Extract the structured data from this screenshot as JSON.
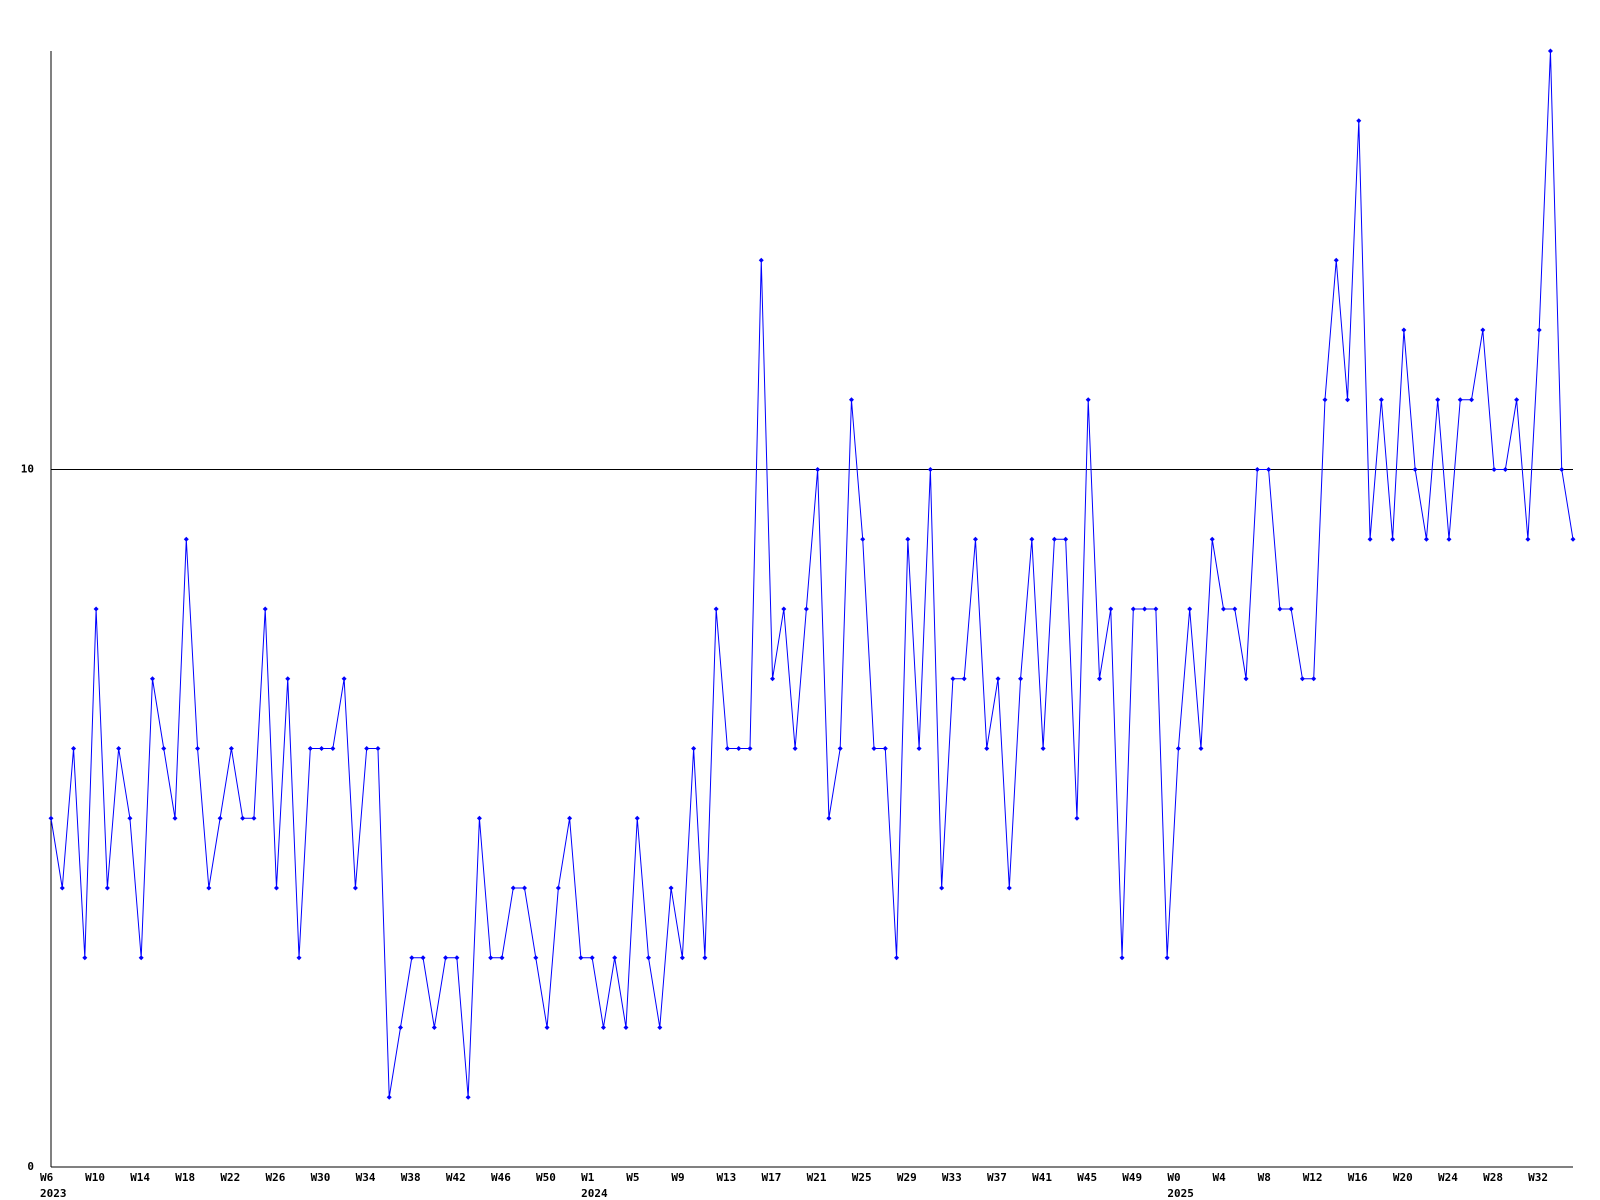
{
  "chart_data": {
    "type": "line",
    "color": "#0000ff",
    "categories": [
      "W6",
      null,
      null,
      null,
      "W10",
      null,
      null,
      null,
      "W14",
      null,
      null,
      null,
      "W18",
      null,
      null,
      null,
      "W22",
      null,
      null,
      null,
      "W26",
      null,
      null,
      null,
      "W30",
      null,
      null,
      null,
      "W34",
      null,
      null,
      null,
      "W38",
      null,
      null,
      null,
      "W42",
      null,
      null,
      null,
      "W46",
      null,
      null,
      null,
      "W50",
      null,
      null,
      null,
      "W1",
      null,
      null,
      null,
      "W5",
      null,
      null,
      null,
      "W9",
      null,
      null,
      null,
      "W13",
      null,
      null,
      null,
      "W17",
      null,
      null,
      null,
      "W21",
      null,
      null,
      null,
      "W25",
      null,
      null,
      null,
      "W29",
      null,
      null,
      null,
      "W33",
      null,
      null,
      null,
      "W37",
      null,
      null,
      null,
      "W41",
      null,
      null,
      null,
      "W45",
      null,
      null,
      null,
      "W49",
      null,
      null,
      null,
      "W0",
      null,
      null,
      null,
      "W4",
      null,
      null,
      null,
      "W8",
      null,
      null,
      null,
      "W12",
      null,
      null,
      null,
      "W16",
      null,
      null,
      null,
      "W20",
      null,
      null,
      null,
      "W24",
      null,
      null,
      null,
      "W28",
      null,
      null,
      null,
      "W32",
      null,
      null,
      null
    ],
    "year_labels": [
      {
        "value": 0,
        "label": "2023"
      },
      {
        "value": 48,
        "label": "2024"
      },
      {
        "value": 100,
        "label": "2025"
      }
    ],
    "values": [
      5,
      4,
      6,
      3,
      8,
      4,
      6,
      5,
      3,
      7,
      6,
      5,
      9,
      6,
      4,
      5,
      6,
      5,
      5,
      8,
      4,
      7,
      3,
      6,
      6,
      6,
      7,
      4,
      6,
      6,
      1,
      2,
      3,
      3,
      2,
      3,
      3,
      1,
      5,
      3,
      3,
      4,
      4,
      3,
      2,
      4,
      5,
      3,
      3,
      2,
      3,
      2,
      5,
      3,
      2,
      4,
      3,
      6,
      3,
      8,
      6,
      6,
      6,
      13,
      7,
      8,
      6,
      8,
      10,
      5,
      6,
      11,
      9,
      6,
      6,
      3,
      9,
      6,
      10,
      4,
      7,
      7,
      9,
      6,
      7,
      4,
      7,
      9,
      6,
      9,
      9,
      5,
      11,
      7,
      8,
      3,
      8,
      8,
      8,
      3,
      6,
      8,
      6,
      9,
      8,
      8,
      7,
      10,
      10,
      8,
      8,
      7,
      7,
      11,
      13,
      11,
      15,
      9,
      11,
      9,
      12,
      10,
      9,
      11,
      9,
      11,
      11,
      12,
      10,
      10,
      11,
      9,
      12,
      16,
      10,
      9
    ],
    "ylim": [
      0,
      16
    ],
    "yticks": [
      0,
      10
    ],
    "grid": true
  }
}
